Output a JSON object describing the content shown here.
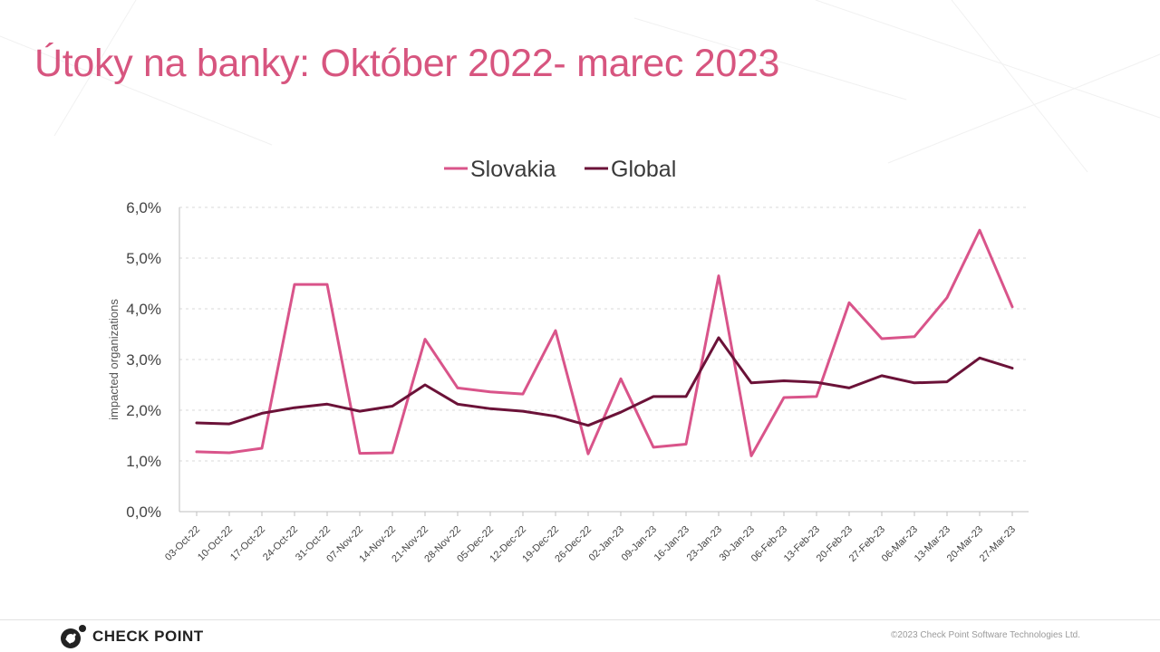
{
  "slide": {
    "title": "Útoky na banky: Október 2022- marec 2023",
    "footer": "©2023 Check Point Software Technologies Ltd.",
    "logo_text": "CHECK POINT"
  },
  "chart_data": {
    "type": "line",
    "title": "",
    "xlabel": "",
    "ylabel": "impacted organizations",
    "ylim": [
      0,
      6
    ],
    "yticks": [
      "0,0%",
      "1,0%",
      "2,0%",
      "3,0%",
      "4,0%",
      "5,0%",
      "6,0%"
    ],
    "legend_position": "top-center",
    "grid": true,
    "categories": [
      "03-Oct-22",
      "10-Oct-22",
      "17-Oct-22",
      "24-Oct-22",
      "31-Oct-22",
      "07-Nov-22",
      "14-Nov-22",
      "21-Nov-22",
      "28-Nov-22",
      "05-Dec-22",
      "12-Dec-22",
      "19-Dec-22",
      "26-Dec-22",
      "02-Jan-23",
      "09-Jan-23",
      "16-Jan-23",
      "23-Jan-23",
      "30-Jan-23",
      "06-Feb-23",
      "13-Feb-23",
      "20-Feb-23",
      "27-Feb-23",
      "06-Mar-23",
      "13-Mar-23",
      "20-Mar-23",
      "27-Mar-23"
    ],
    "series": [
      {
        "name": "Slovakia",
        "color": "#d9548a",
        "values": [
          1.18,
          1.16,
          1.25,
          4.48,
          4.48,
          1.15,
          1.16,
          3.4,
          2.44,
          2.36,
          2.32,
          3.57,
          1.14,
          2.62,
          1.27,
          1.33,
          4.65,
          1.1,
          2.25,
          2.27,
          4.12,
          3.41,
          3.45,
          4.22,
          5.55,
          4.04
        ]
      },
      {
        "name": "Global",
        "color": "#6b1238",
        "values": [
          1.75,
          1.73,
          1.94,
          2.05,
          2.12,
          1.98,
          2.08,
          2.5,
          2.12,
          2.03,
          1.98,
          1.88,
          1.7,
          1.96,
          2.27,
          2.27,
          3.43,
          2.54,
          2.58,
          2.55,
          2.44,
          2.68,
          2.54,
          2.56,
          3.03,
          2.83
        ]
      }
    ]
  }
}
